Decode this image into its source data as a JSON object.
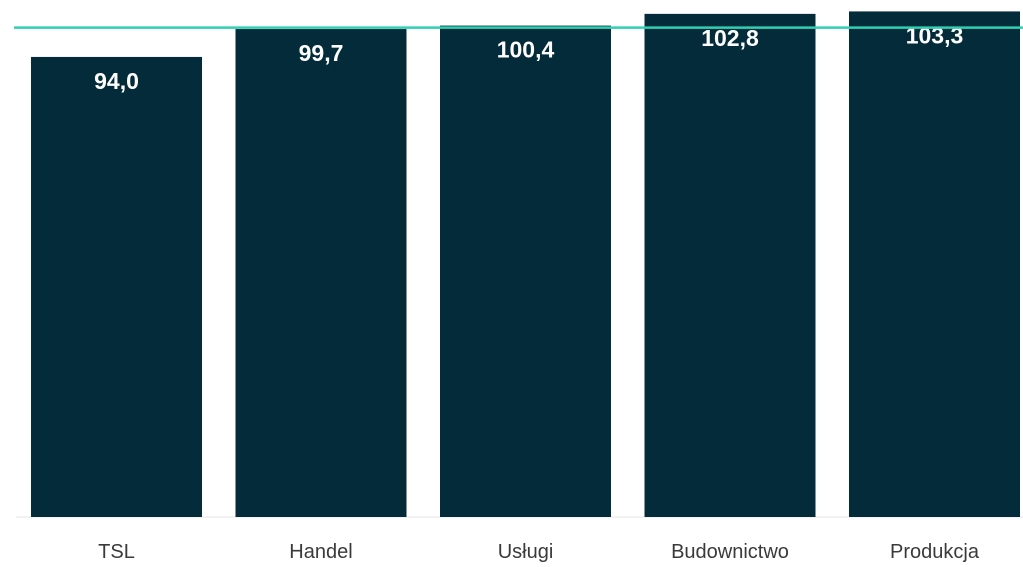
{
  "chart_data": {
    "type": "bar",
    "categories": [
      "TSL",
      "Handel",
      "Usługi",
      "Budownictwo",
      "Produkcja"
    ],
    "values": [
      94.0,
      99.7,
      100.4,
      102.8,
      103.3
    ],
    "value_labels": [
      "94,0",
      "99,7",
      "100,4",
      "102,8",
      "103,3"
    ],
    "reference_line": 100,
    "ylim": [
      0,
      104
    ],
    "bar_color": "#032b3a",
    "reference_line_color": "#2fd1b2",
    "grid": false,
    "legend": "none"
  }
}
